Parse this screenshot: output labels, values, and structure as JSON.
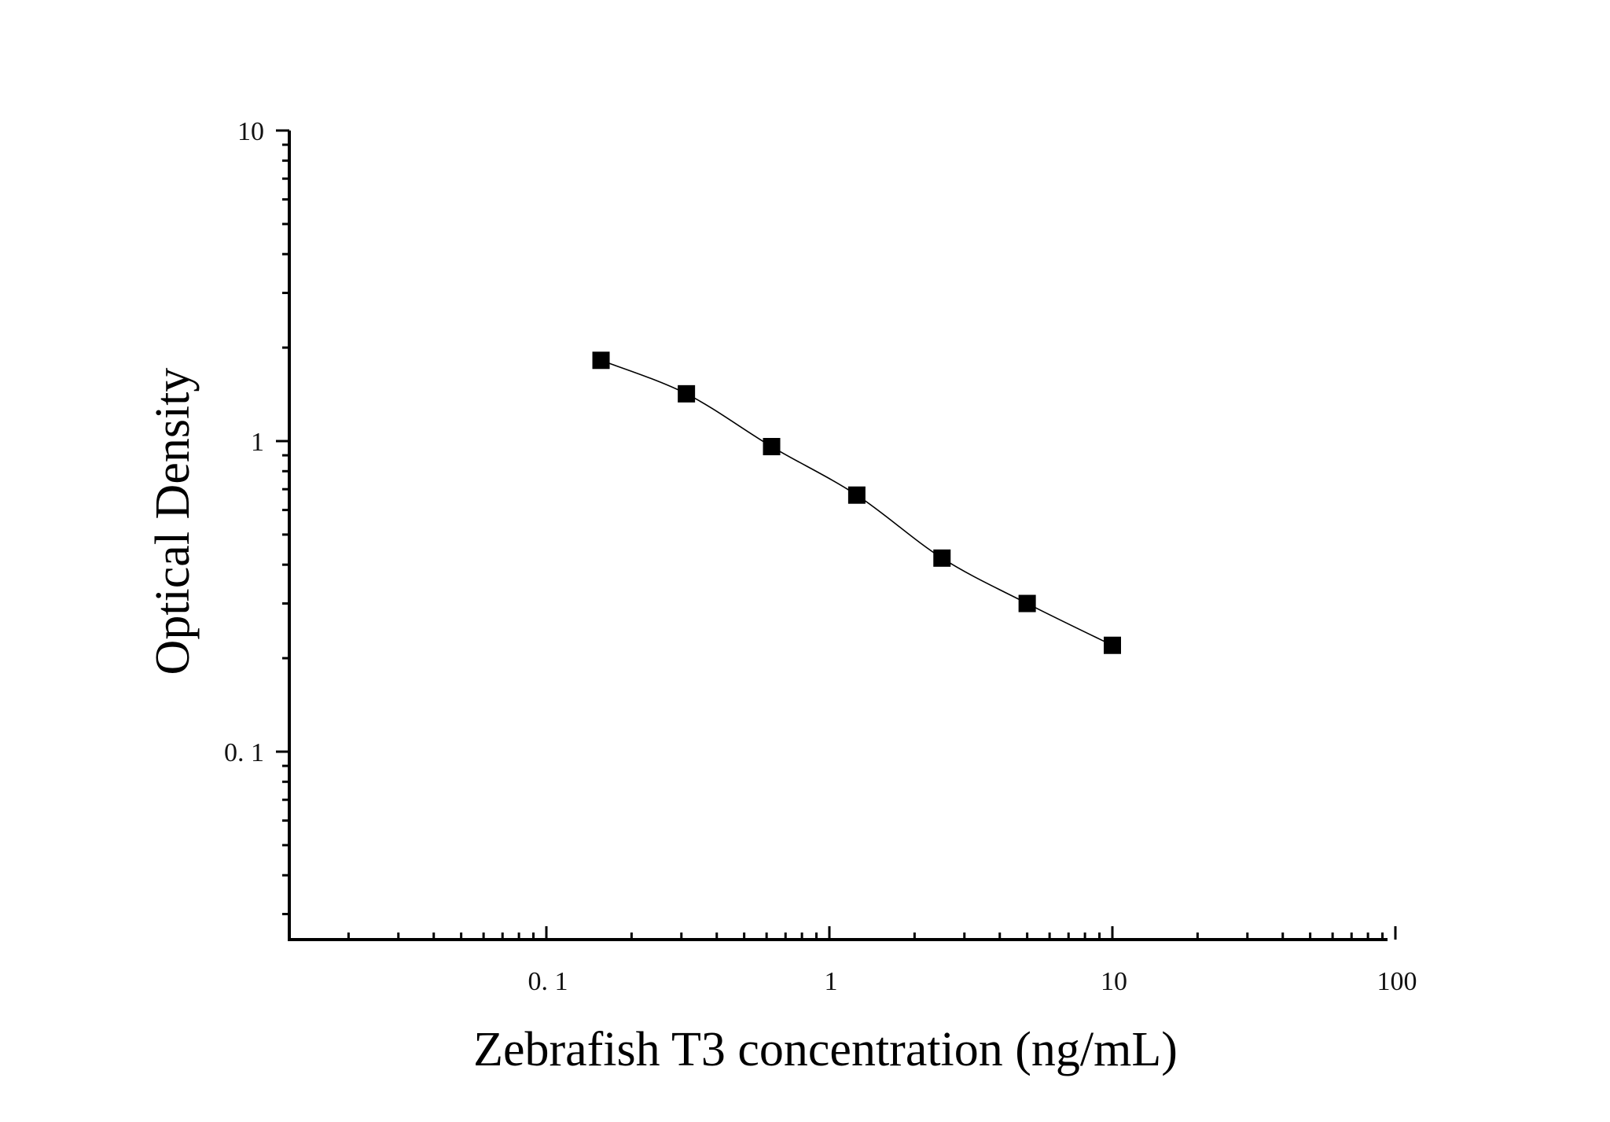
{
  "chart_data": {
    "type": "scatter",
    "title": "",
    "xlabel": "Zebrafish T3 concentration (ng/mL)",
    "ylabel": "Optical Density",
    "xscale": "log",
    "yscale": "log",
    "xlim": [
      0.01,
      100
    ],
    "ylim": [
      0.025,
      10
    ],
    "x_tick_values": [
      0.1,
      1,
      10,
      100
    ],
    "x_tick_labels": [
      "0. 1",
      "1",
      "10",
      "100"
    ],
    "y_tick_values": [
      0.1,
      1,
      10
    ],
    "y_tick_labels": [
      "0. 1",
      "1",
      "10"
    ],
    "grid": false,
    "legend": "none",
    "marker": "square",
    "colors": {
      "marker": "#000000",
      "line": "#000000",
      "axis": "#000000"
    },
    "series": [
      {
        "x": [
          0.156,
          0.3125,
          0.625,
          1.25,
          2.5,
          5,
          10
        ],
        "y": [
          1.82,
          1.42,
          0.96,
          0.67,
          0.42,
          0.3,
          0.22
        ],
        "fit": "smooth curve"
      }
    ]
  }
}
